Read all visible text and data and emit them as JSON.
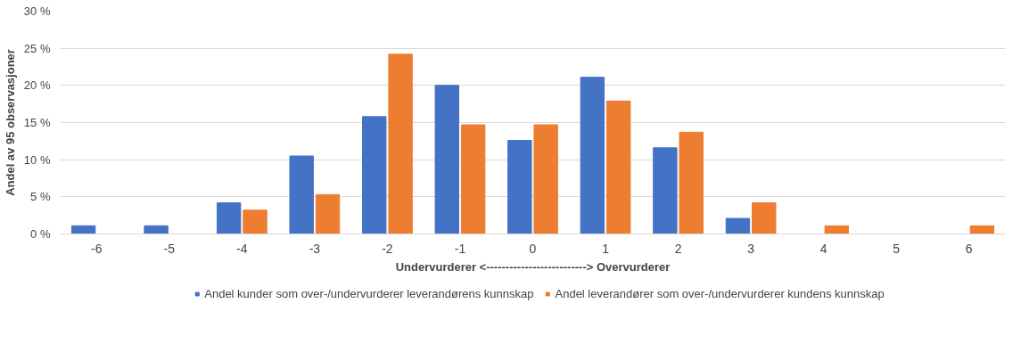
{
  "chart_data": {
    "type": "bar",
    "xlabel": "Undervurderer <--------------------------> Overvurderer",
    "ylabel": "Andel av 95 observasjoner",
    "categories": [
      "-6",
      "-5",
      "-4",
      "-3",
      "-2",
      "-1",
      "0",
      "1",
      "2",
      "3",
      "4",
      "5",
      "6"
    ],
    "series": [
      {
        "name": "Andel kunder som over-/undervurderer leverandørens kunnskap",
        "color": "#4472c4",
        "values": [
          1.1,
          1.1,
          4.2,
          10.5,
          15.8,
          20.0,
          12.6,
          21.1,
          11.6,
          2.1,
          0,
          0,
          0
        ]
      },
      {
        "name": "Andel leverandører som over-/undervurderer kundens kunnskap",
        "color": "#ed7d31",
        "values": [
          0,
          0,
          3.2,
          5.3,
          24.2,
          14.7,
          14.7,
          17.9,
          13.7,
          4.2,
          1.1,
          0,
          1.1
        ]
      }
    ],
    "ylim": [
      0,
      30
    ],
    "yticks": [
      {
        "value": 0,
        "label": "0 %"
      },
      {
        "value": 5,
        "label": "5 %"
      },
      {
        "value": 10,
        "label": "10 %"
      },
      {
        "value": 15,
        "label": "15 %"
      },
      {
        "value": 20,
        "label": "20 %"
      },
      {
        "value": 25,
        "label": "25 %"
      },
      {
        "value": 30,
        "label": "30 %"
      }
    ],
    "grid": "y",
    "legend": "bottom"
  }
}
